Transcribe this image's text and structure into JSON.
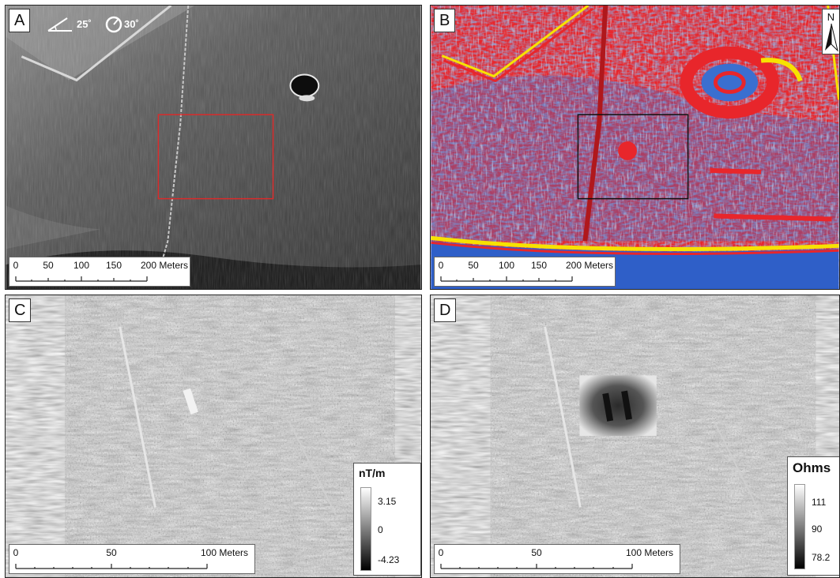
{
  "panels": {
    "a": {
      "label": "A",
      "illumination": {
        "azimuth": "25˚",
        "altitude": "30˚"
      },
      "scale": {
        "ticks": [
          "0",
          "50",
          "100",
          "150",
          "200 Meters"
        ]
      }
    },
    "b": {
      "label": "B",
      "north": "N",
      "scale": {
        "ticks": [
          "0",
          "50",
          "100",
          "150",
          "200 Meters"
        ]
      }
    },
    "c": {
      "label": "C",
      "legend": {
        "title": "nT/m",
        "max": "3.15",
        "mid": "0",
        "min": "-4.23"
      },
      "scale": {
        "ticks": [
          "0",
          "50",
          "100 Meters"
        ]
      }
    },
    "d": {
      "label": "D",
      "legend": {
        "title": "Ohms",
        "max": "111",
        "mid": "90",
        "min": "78.2"
      },
      "scale": {
        "ticks": [
          "0",
          "50",
          "100 Meters"
        ]
      }
    }
  },
  "colors": {
    "study_area_box_a": "#d92b2b",
    "study_area_box_b": "#111111",
    "raster_red": "#e8262b",
    "raster_blue": "#3a6fd0",
    "raster_yellow": "#f7e200"
  }
}
